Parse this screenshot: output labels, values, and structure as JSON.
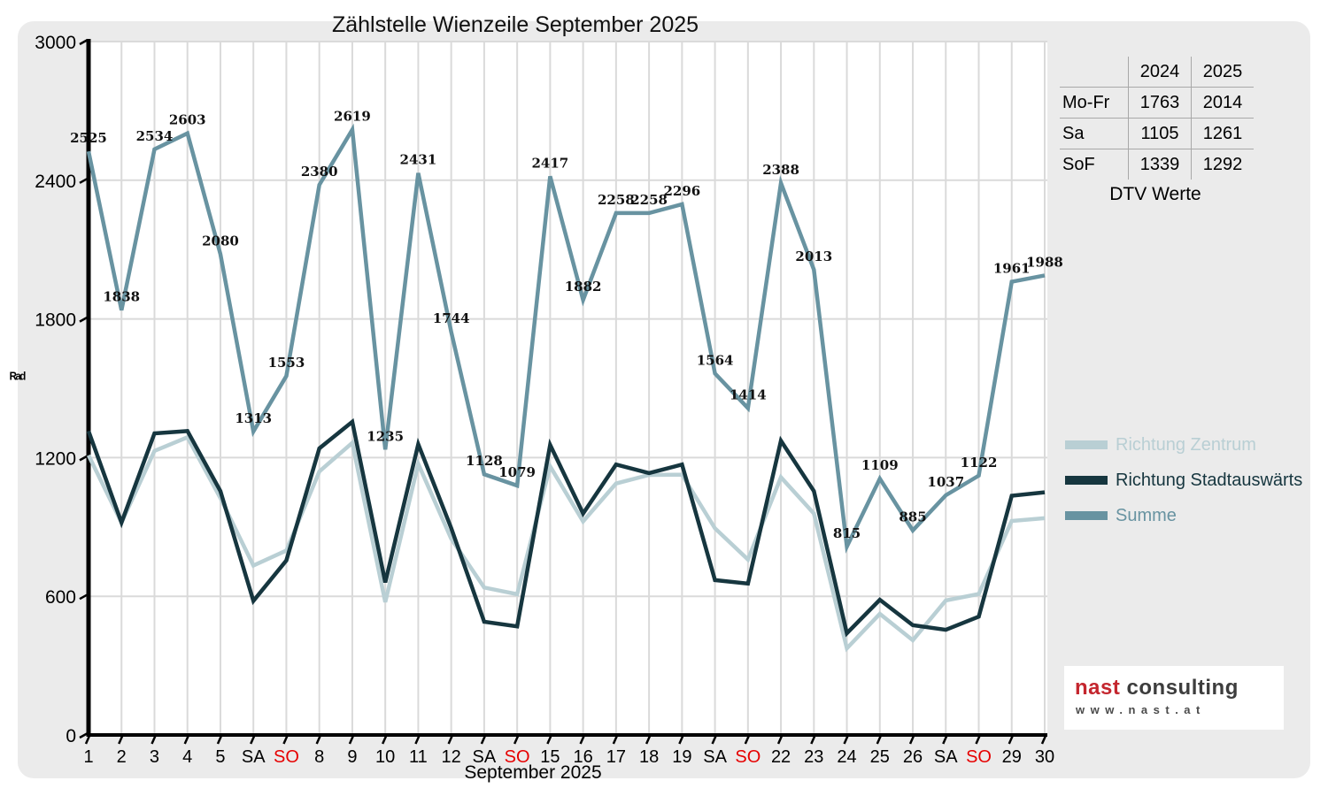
{
  "title": "Zählstelle Wienzeile September 2025",
  "y_axis_unit_label": "Rad",
  "chart_data": {
    "type": "line",
    "title": "Zählstelle Wienzeile September 2025",
    "xlabel": "September 2025",
    "ylabel": "Rad",
    "ylim": [
      0,
      3000
    ],
    "yticks": [
      0,
      600,
      1200,
      1800,
      2400,
      3000
    ],
    "grid": true,
    "legend_position": "right",
    "so_color": "#e60000",
    "categories": [
      "1",
      "2",
      "3",
      "4",
      "5",
      "SA",
      "SO",
      "8",
      "9",
      "10",
      "11",
      "12",
      "SA",
      "SO",
      "15",
      "16",
      "17",
      "18",
      "19",
      "SA",
      "SO",
      "22",
      "23",
      "24",
      "25",
      "26",
      "SA",
      "SO",
      "29",
      "30"
    ],
    "series": [
      {
        "name": "Richtung Zentrum",
        "color": "#b9cfd4",
        "values": [
          1210,
          919,
          1229,
          1288,
          1025,
          733,
          798,
          1140,
          1264,
          575,
          1173,
          849,
          638,
          609,
          1162,
          924,
          1088,
          1125,
          1126,
          894,
          759,
          1115,
          958,
          375,
          524,
          410,
          582,
          610,
          926,
          938
        ]
      },
      {
        "name": "Richtung Stadtauswärts",
        "color": "#16363f",
        "values": [
          1315,
          919,
          1305,
          1315,
          1055,
          580,
          755,
          1240,
          1355,
          660,
          1258,
          895,
          490,
          470,
          1255,
          958,
          1170,
          1133,
          1170,
          670,
          655,
          1273,
          1055,
          440,
          585,
          475,
          455,
          512,
          1035,
          1050
        ]
      },
      {
        "name": "Summe",
        "color": "#6893a1",
        "data_labels": true,
        "values": [
          2525,
          1838,
          2534,
          2603,
          2080,
          1313,
          1553,
          2380,
          2619,
          1235,
          2431,
          1744,
          1128,
          1079,
          2417,
          1882,
          2258,
          2258,
          2296,
          1564,
          1414,
          2388,
          2013,
          815,
          1109,
          885,
          1037,
          1122,
          1961,
          1988
        ]
      }
    ]
  },
  "table": {
    "col_headers": [
      "2024",
      "2025"
    ],
    "rows": [
      {
        "label": "Mo-Fr",
        "y2024": "1763",
        "y2025": "2014"
      },
      {
        "label": "Sa",
        "y2024": "1105",
        "y2025": "1261"
      },
      {
        "label": "SoF",
        "y2024": "1339",
        "y2025": "1292"
      }
    ],
    "caption": "DTV Werte"
  },
  "legend": {
    "items": [
      {
        "label": "Richtung Zentrum",
        "color": "#b9cfd4"
      },
      {
        "label": "Richtung Stadtauswärts",
        "color": "#16363f"
      },
      {
        "label": "Summe",
        "color": "#6893a1"
      }
    ]
  },
  "logo": {
    "brand_red": "nast",
    "brand_dark": "consulting",
    "url_text": "www.nast.at"
  }
}
